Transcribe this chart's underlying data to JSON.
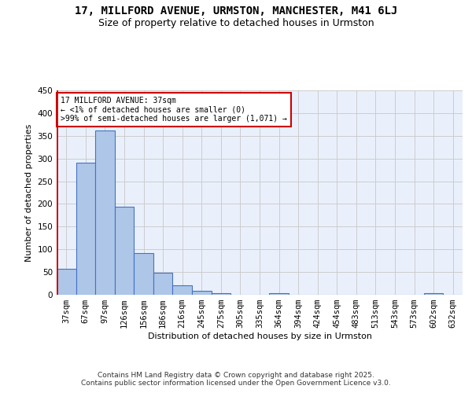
{
  "title": "17, MILLFORD AVENUE, URMSTON, MANCHESTER, M41 6LJ",
  "subtitle": "Size of property relative to detached houses in Urmston",
  "xlabel": "Distribution of detached houses by size in Urmston",
  "ylabel": "Number of detached properties",
  "categories": [
    "37sqm",
    "67sqm",
    "97sqm",
    "126sqm",
    "156sqm",
    "186sqm",
    "216sqm",
    "245sqm",
    "275sqm",
    "305sqm",
    "335sqm",
    "364sqm",
    "394sqm",
    "424sqm",
    "454sqm",
    "483sqm",
    "513sqm",
    "543sqm",
    "573sqm",
    "602sqm",
    "632sqm"
  ],
  "values": [
    57,
    291,
    362,
    193,
    92,
    49,
    20,
    8,
    3,
    0,
    0,
    4,
    0,
    0,
    0,
    0,
    0,
    0,
    0,
    3,
    0
  ],
  "bar_color": "#aec6e8",
  "bar_edge_color": "#4472c4",
  "annotation_box_color": "#ffffff",
  "annotation_box_edge": "#cc0000",
  "red_line_color": "#cc0000",
  "annotation_text": "17 MILLFORD AVENUE: 37sqm\n← <1% of detached houses are smaller (0)\n>99% of semi-detached houses are larger (1,071) →",
  "annotation_fontsize": 7.0,
  "grid_color": "#cccccc",
  "bg_color": "#eaf0fb",
  "ylim": [
    0,
    450
  ],
  "yticks": [
    0,
    50,
    100,
    150,
    200,
    250,
    300,
    350,
    400,
    450
  ],
  "footer": "Contains HM Land Registry data © Crown copyright and database right 2025.\nContains public sector information licensed under the Open Government Licence v3.0.",
  "title_fontsize": 10,
  "subtitle_fontsize": 9,
  "label_fontsize": 8,
  "tick_fontsize": 7.5
}
